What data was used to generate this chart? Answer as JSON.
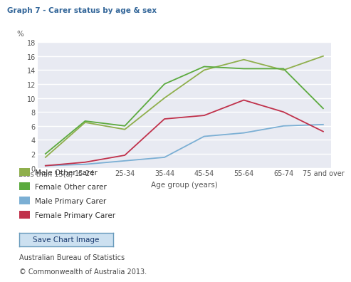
{
  "title": "Graph 7 - Carer status by age & sex",
  "xlabel": "Age group (years)",
  "ylabel": "%",
  "categories": [
    "Less than 15(a)",
    "15-24",
    "25-34",
    "35-44",
    "45-54",
    "55-64",
    "65-74",
    "75 and over"
  ],
  "male_other_carer": [
    1.5,
    6.5,
    5.5,
    10.0,
    14.0,
    15.5,
    14.0,
    16.0
  ],
  "female_other_carer": [
    2.0,
    6.7,
    6.0,
    12.0,
    14.5,
    14.2,
    14.2,
    8.5
  ],
  "male_primary_carer": [
    0.3,
    0.5,
    1.0,
    1.5,
    4.5,
    5.0,
    6.0,
    6.2
  ],
  "female_primary_carer": [
    0.3,
    0.8,
    1.8,
    7.0,
    7.5,
    9.7,
    8.0,
    5.2
  ],
  "color_male_other": "#8faf4c",
  "color_female_other": "#5baa3e",
  "color_male_primary": "#7bafd4",
  "color_female_primary": "#c0314b",
  "ylim": [
    0,
    18
  ],
  "yticks": [
    0,
    2,
    4,
    6,
    8,
    10,
    12,
    14,
    16,
    18
  ],
  "background_color": "#ffffff",
  "plot_bg_color": "#e8eaf2",
  "grid_color": "#ffffff",
  "title_fontsize": 7.5,
  "axis_fontsize": 7.5,
  "tick_fontsize": 7,
  "legend_fontsize": 7.5,
  "footer_text1": "Australian Bureau of Statistics",
  "footer_text2": "© Commonwealth of Australia 2013.",
  "button_text": "Save Chart Image"
}
